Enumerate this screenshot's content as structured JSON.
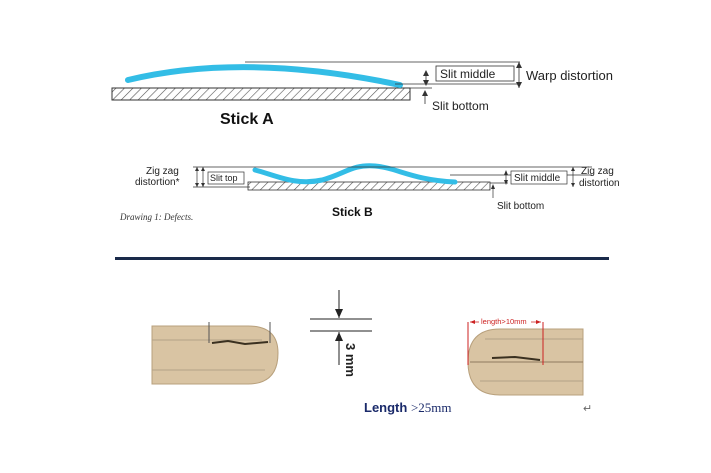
{
  "stick_a": {
    "title": "Stick A",
    "label_slit_middle": "Slit middle",
    "label_slit_bottom": "Slit bottom",
    "label_warp": "Warp distortion"
  },
  "stick_b": {
    "title": "Stick B",
    "label_zigzag_left_line1": "Zig zag",
    "label_zigzag_left_line2": "distortion*",
    "label_slit_top": "Slit top",
    "label_slit_middle": "Slit middle",
    "label_zigzag_right_line1": "Zig zag",
    "label_zigzag_right_line2": "distortion",
    "label_slit_bottom": "Slit bottom"
  },
  "caption": "Drawing 1: Defects.",
  "photo_section": {
    "thickness_label": "3 mm",
    "length_label_prefix": "Length ",
    "length_label_value": ">25mm",
    "callout_label": "length>10mm",
    "paragraph_mark": "↵"
  },
  "colors": {
    "stick_curve": "#33bde6",
    "divider": "#1a2a4a",
    "wood": "#d9c4a3",
    "wood_line": "#8f7a5f",
    "callout": "#cc2222",
    "length_text": "#1a2a6a"
  }
}
